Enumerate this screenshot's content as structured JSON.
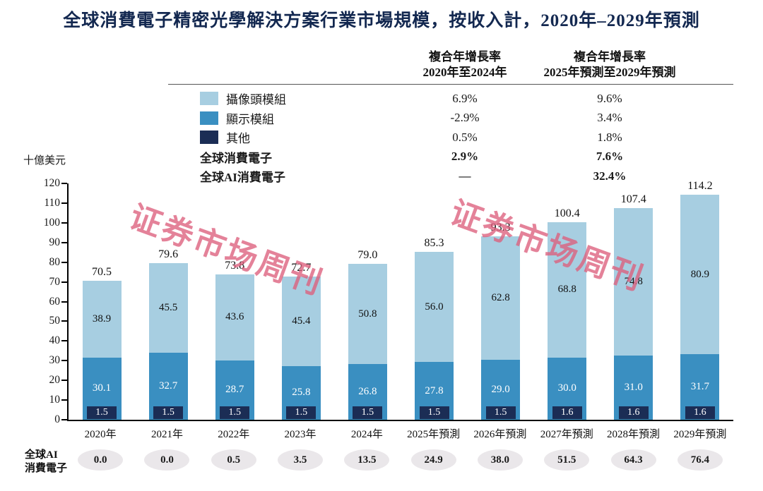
{
  "title": "全球消費電子精密光學解決方案行業市場規模，按收入計，2020年–2029年預測",
  "watermark": {
    "text": "证券市场周刊",
    "color": "#dd5f7d"
  },
  "cagr_table": {
    "headers": [
      {
        "line1": "複合年增長率",
        "line2": "2020年至2024年"
      },
      {
        "line1": "複合年增長率",
        "line2": "2025年預測至2029年預測"
      }
    ],
    "rows": [
      {
        "label": "攝像頭模組",
        "swatch": "#a7cee1",
        "v1": "6.9%",
        "v2": "9.6%",
        "bold": false
      },
      {
        "label": "顯示模組",
        "swatch": "#3a8fc1",
        "v1": "-2.9%",
        "v2": "3.4%",
        "bold": false
      },
      {
        "label": "其他",
        "swatch": "#1b2d55",
        "v1": "0.5%",
        "v2": "1.8%",
        "bold": false
      },
      {
        "label": "全球消費電子",
        "swatch": null,
        "v1": "2.9%",
        "v2": "7.6%",
        "bold": true
      },
      {
        "label": "全球AI消費電子",
        "swatch": null,
        "v1": "—",
        "v2": "32.4%",
        "bold": true
      }
    ]
  },
  "chart_data": {
    "type": "bar",
    "stacked": true,
    "title": "全球消費電子精密光學解決方案行業市場規模，按收入計，2020年–2029年預測",
    "unit_label": "十億美元",
    "ylim": [
      0,
      120
    ],
    "ytick_step": 10,
    "grid": false,
    "categories": [
      "2020年",
      "2021年",
      "2022年",
      "2023年",
      "2024年",
      "2025年預測",
      "2026年預測",
      "2027年預測",
      "2028年預測",
      "2029年預測"
    ],
    "totals": [
      70.5,
      79.6,
      73.8,
      72.7,
      79.0,
      85.3,
      93.3,
      100.4,
      107.4,
      114.2
    ],
    "series": [
      {
        "name": "攝像頭模組",
        "color": "#a7cee1",
        "values": [
          38.9,
          45.5,
          43.6,
          45.4,
          50.8,
          56.0,
          62.8,
          68.8,
          74.8,
          80.9
        ]
      },
      {
        "name": "顯示模組",
        "color": "#3a8fc1",
        "values": [
          30.1,
          32.7,
          28.7,
          25.8,
          26.8,
          27.8,
          29.0,
          30.0,
          31.0,
          31.7
        ]
      },
      {
        "name": "其他",
        "color": "#1b2d55",
        "values": [
          1.5,
          1.5,
          1.5,
          1.5,
          1.5,
          1.5,
          1.5,
          1.6,
          1.6,
          1.6
        ]
      }
    ],
    "ai_row": {
      "label_line1": "全球AI",
      "label_line2": "消費電子",
      "values": [
        0.0,
        0.0,
        0.5,
        3.5,
        13.5,
        24.9,
        38.0,
        51.5,
        64.3,
        76.4
      ]
    }
  }
}
